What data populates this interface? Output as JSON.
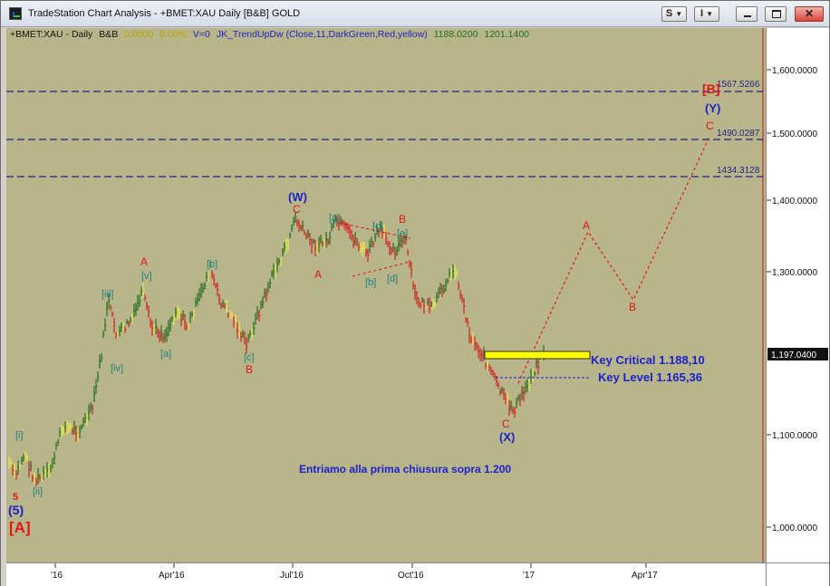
{
  "window": {
    "title": "TradeStation Chart Analysis - +BMET:XAU Daily [B&B] GOLD",
    "buttons": [
      {
        "label": "S"
      },
      {
        "label": "I"
      }
    ]
  },
  "legend": {
    "symbol": "+BMET:XAU - Daily",
    "study": "B&B",
    "val1": "0.0000",
    "val2": "0.00%",
    "v": "V=0",
    "indicator": "JK_TrendUpDw (Close,11,DarkGreen,Red,yellow)",
    "price1": "1188.0200",
    "price2": "1201.1400"
  },
  "price_axis": {
    "ticks": [
      "1,600.0000",
      "1,500.0000",
      "1,400.0000",
      "1,300.0000",
      "1,100.0000",
      "1,000.0000"
    ],
    "last_price": "1,197.0400"
  },
  "time_axis": {
    "ticks": [
      "'16",
      "Apr'16",
      "Jul'16",
      "Oct'16",
      "'17",
      "Apr'17"
    ]
  },
  "levels": [
    {
      "label": "1567.5266"
    },
    {
      "label": "1490.0287"
    },
    {
      "label": "1434.3128"
    }
  ],
  "key_levels": {
    "critical": "Key Critical  1.188,10",
    "level": "Key Level  1.165,36"
  },
  "note": "Entriamo alla prima chiusura sopra 1.200",
  "wave_labels": {
    "W": "(W)",
    "X": "(X)",
    "Y": "(Y)",
    "five": "(5)",
    "five_small": "5",
    "A_big": "[A]",
    "B_big": "[B]",
    "i": "[i]",
    "ii": "[ii]",
    "iii": "[iii]",
    "iv": "[iv]",
    "v": "[v]",
    "a": "[a]",
    "b": "[b]",
    "c": "[c]",
    "d": "[d]",
    "e": "[e]",
    "A": "A",
    "B": "B",
    "C": "C"
  },
  "colors": {
    "background": "#b9b58a",
    "up_bar": "#1f6f1f",
    "down_bar": "#d61f1f",
    "neutral_bar": "#e9e94a",
    "level_line": "#22228a",
    "wave_blue": "#1a23c8",
    "wave_red": "#e01515",
    "wave_teal": "#1f8080",
    "key_box": "#ffff00"
  }
}
